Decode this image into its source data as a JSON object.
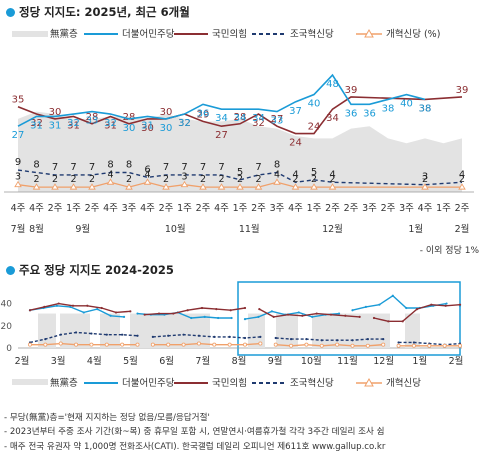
{
  "page": {
    "title1": "정당 지지도: 2025년, 최근 6개월",
    "title2": "주요 정당 지지도 2024-2025",
    "side_note": "- 이외 정당 1%",
    "footnotes": [
      "- 무당(無黨)층='현재 지지하는 정당 없음/모름/응답거절'",
      "- 2023년부터 주중 조사 기간(화~목) 중 휴무일 포함 시, 연말연시·여름휴가철 각각 3주간 데일리 조사 쉼",
      "- 매주 전국 유권자 약 1,000명 전화조사(CATI). 한국갤럽 데일리 오피니언 제611호 www.gallup.co.kr"
    ]
  },
  "legend": {
    "items": [
      "無黨층",
      "더불어민주당",
      "국민의힘",
      "조국혁신당",
      "개혁신당 (%)"
    ],
    "items2": [
      "無黨층",
      "더불어민주당",
      "국민의힘",
      "조국혁신당",
      "개혁신당"
    ]
  },
  "colors": {
    "muntang": "#e3e3e3",
    "minju": "#1a9bd7",
    "ppp": "#8b2e32",
    "jokuk": "#1f3a70",
    "gaehyuk": "#f0a06a",
    "highlight": "#1a9bd7"
  },
  "chart_data": [
    {
      "type": "line",
      "title": "정당 지지도: 2025년, 최근 6개월",
      "x_week_labels": [
        "4주",
        "4주",
        "2주",
        "1주",
        "2주",
        "4주",
        "3주",
        "4주",
        "2주",
        "1주",
        "2주",
        "4주",
        "1주",
        "2주",
        "3주",
        "4주",
        "1주",
        "2주",
        "2주",
        "3주",
        "2주",
        "3주",
        "4주",
        "1주",
        "2주"
      ],
      "x_month_labels": [
        {
          "label": "7월",
          "at": 0
        },
        {
          "label": "8월",
          "at": 1
        },
        {
          "label": "9월",
          "at": 3.5
        },
        {
          "label": "10월",
          "at": 8.5
        },
        {
          "label": "11월",
          "at": 12.5
        },
        {
          "label": "12월",
          "at": 17
        },
        {
          "label": "1월",
          "at": 21.5
        },
        {
          "label": "2월",
          "at": 24
        }
      ],
      "series": [
        {
          "name": "더불어민주당",
          "values": [
            27,
            31,
            31,
            32,
            33,
            32,
            30,
            31,
            30,
            32,
            36,
            34,
            34,
            34,
            33,
            37,
            40,
            48,
            36,
            36,
            38,
            40,
            38
          ]
        },
        {
          "name": "국민의힘",
          "values": [
            35,
            32,
            30,
            31,
            28,
            31,
            28,
            30,
            30,
            32,
            29,
            27,
            28,
            32,
            27,
            24,
            24,
            34,
            39,
            38,
            39
          ]
        },
        {
          "name": "조국혁신당",
          "values": [
            9,
            8,
            7,
            7,
            7,
            8,
            8,
            6,
            7,
            7,
            7,
            7,
            5,
            7,
            8,
            4,
            5,
            4,
            3,
            4
          ]
        },
        {
          "name": "개혁신당",
          "values": [
            3,
            2,
            2,
            2,
            2,
            4,
            2,
            4,
            2,
            3,
            2,
            2,
            2,
            2,
            4,
            2,
            2,
            2,
            2,
            2
          ]
        },
        {
          "name": "無黨층",
          "values": [
            30,
            33,
            32,
            30,
            30,
            31,
            31,
            30,
            32,
            30,
            29,
            29,
            30,
            27,
            26,
            23,
            22,
            22,
            26,
            27,
            22,
            20,
            22,
            20,
            22
          ]
        }
      ],
      "partial_series_indexes": {
        "국민의힘": [
          0,
          1,
          2,
          3,
          4,
          5,
          6,
          7,
          8,
          9,
          10,
          11,
          12,
          13,
          14,
          15,
          16,
          17,
          18,
          22,
          24
        ],
        "조국혁신당": [
          0,
          1,
          2,
          3,
          4,
          5,
          6,
          7,
          8,
          9,
          10,
          11,
          12,
          13,
          14,
          15,
          16,
          17,
          22,
          24
        ],
        "개혁신당": [
          0,
          1,
          2,
          3,
          4,
          5,
          6,
          7,
          8,
          9,
          10,
          11,
          12,
          13,
          14,
          15,
          16,
          17,
          22,
          24
        ]
      },
      "ylim": [
        0,
        55
      ]
    },
    {
      "type": "line",
      "title": "주요 정당 지지도 2024-2025",
      "y_ticks": [
        0,
        20,
        40
      ],
      "ylim": [
        0,
        45
      ],
      "x_month_labels": [
        "2월",
        "3월",
        "4월",
        "5월",
        "6월",
        "7월",
        "8월",
        "9월",
        "10월",
        "11월",
        "12월",
        "1월",
        "2월"
      ],
      "highlight_from": "9월",
      "series": [
        {
          "name": "더불어민주당",
          "values": [
            34,
            36,
            38,
            37,
            32,
            35,
            29,
            28,
            31,
            30,
            30,
            32,
            27,
            28,
            27,
            27,
            26,
            28,
            33,
            30,
            32,
            28,
            30,
            31,
            34,
            37,
            39,
            47,
            36,
            36,
            38,
            40,
            38
          ]
        },
        {
          "name": "국민의힘",
          "values": [
            34,
            37,
            40,
            38,
            38,
            36,
            32,
            33,
            30,
            31,
            31,
            34,
            36,
            35,
            34,
            36,
            35,
            28,
            30,
            29,
            31,
            30,
            29,
            28,
            27,
            24,
            24,
            35,
            39,
            38,
            39
          ]
        },
        {
          "name": "조국혁신당",
          "values": [
            5,
            8,
            12,
            14,
            13,
            12,
            12,
            11,
            10,
            11,
            12,
            11,
            10,
            10,
            9,
            10,
            9,
            8,
            8,
            7,
            7,
            7,
            8,
            8,
            5,
            5,
            4,
            3,
            4
          ]
        },
        {
          "name": "개혁신당",
          "values": [
            3,
            3,
            4,
            3,
            3,
            3,
            3,
            3,
            3,
            3,
            3,
            4,
            3,
            3,
            3,
            4,
            3,
            2,
            3,
            2,
            3,
            2,
            2,
            3,
            2,
            2,
            2,
            2,
            2
          ]
        }
      ]
    }
  ]
}
